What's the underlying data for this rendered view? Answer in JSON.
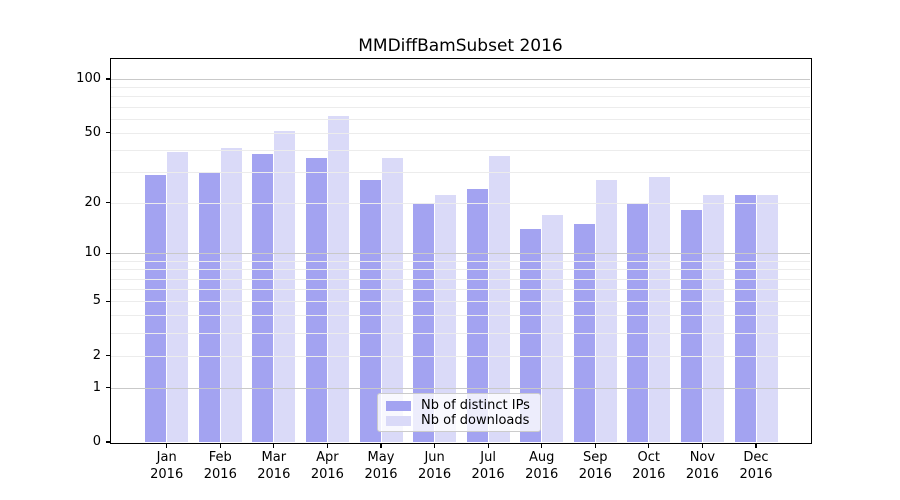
{
  "title": "MMDiffBamSubset 2016",
  "chart_data": {
    "type": "bar",
    "title": "MMDiffBamSubset 2016",
    "categories": [
      "Jan",
      "Feb",
      "Mar",
      "Apr",
      "May",
      "Jun",
      "Jul",
      "Aug",
      "Sep",
      "Oct",
      "Nov",
      "Dec"
    ],
    "category_year": "2016",
    "series": [
      {
        "name": "Nb of distinct IPs",
        "color": "#a3a3f1",
        "values": [
          29,
          30,
          38,
          36,
          27,
          20,
          24,
          14,
          15,
          20,
          18,
          22
        ]
      },
      {
        "name": "Nb of downloads",
        "color": "#dadaf8",
        "values": [
          39,
          41,
          51,
          62,
          36,
          22,
          37,
          17,
          27,
          28,
          22,
          22
        ]
      }
    ],
    "xlabel": "",
    "ylabel": "",
    "yscale": "log1p",
    "ylim": [
      0,
      129
    ],
    "yticks": [
      0,
      1,
      2,
      5,
      10,
      20,
      50,
      100
    ],
    "major_gridline_values": [
      1,
      10,
      100
    ],
    "minor_gridline_values": [
      2,
      3,
      4,
      5,
      6,
      7,
      8,
      9,
      20,
      30,
      40,
      50,
      60,
      70,
      80,
      90
    ],
    "grid": true,
    "legend_position": "lower center"
  },
  "colors": {
    "distinct_ips_bar": "#a3a3f1",
    "downloads_bar": "#dadaf8",
    "major_grid": "#c9c9c9",
    "minor_grid": "#ececec",
    "axis": "#000000"
  }
}
